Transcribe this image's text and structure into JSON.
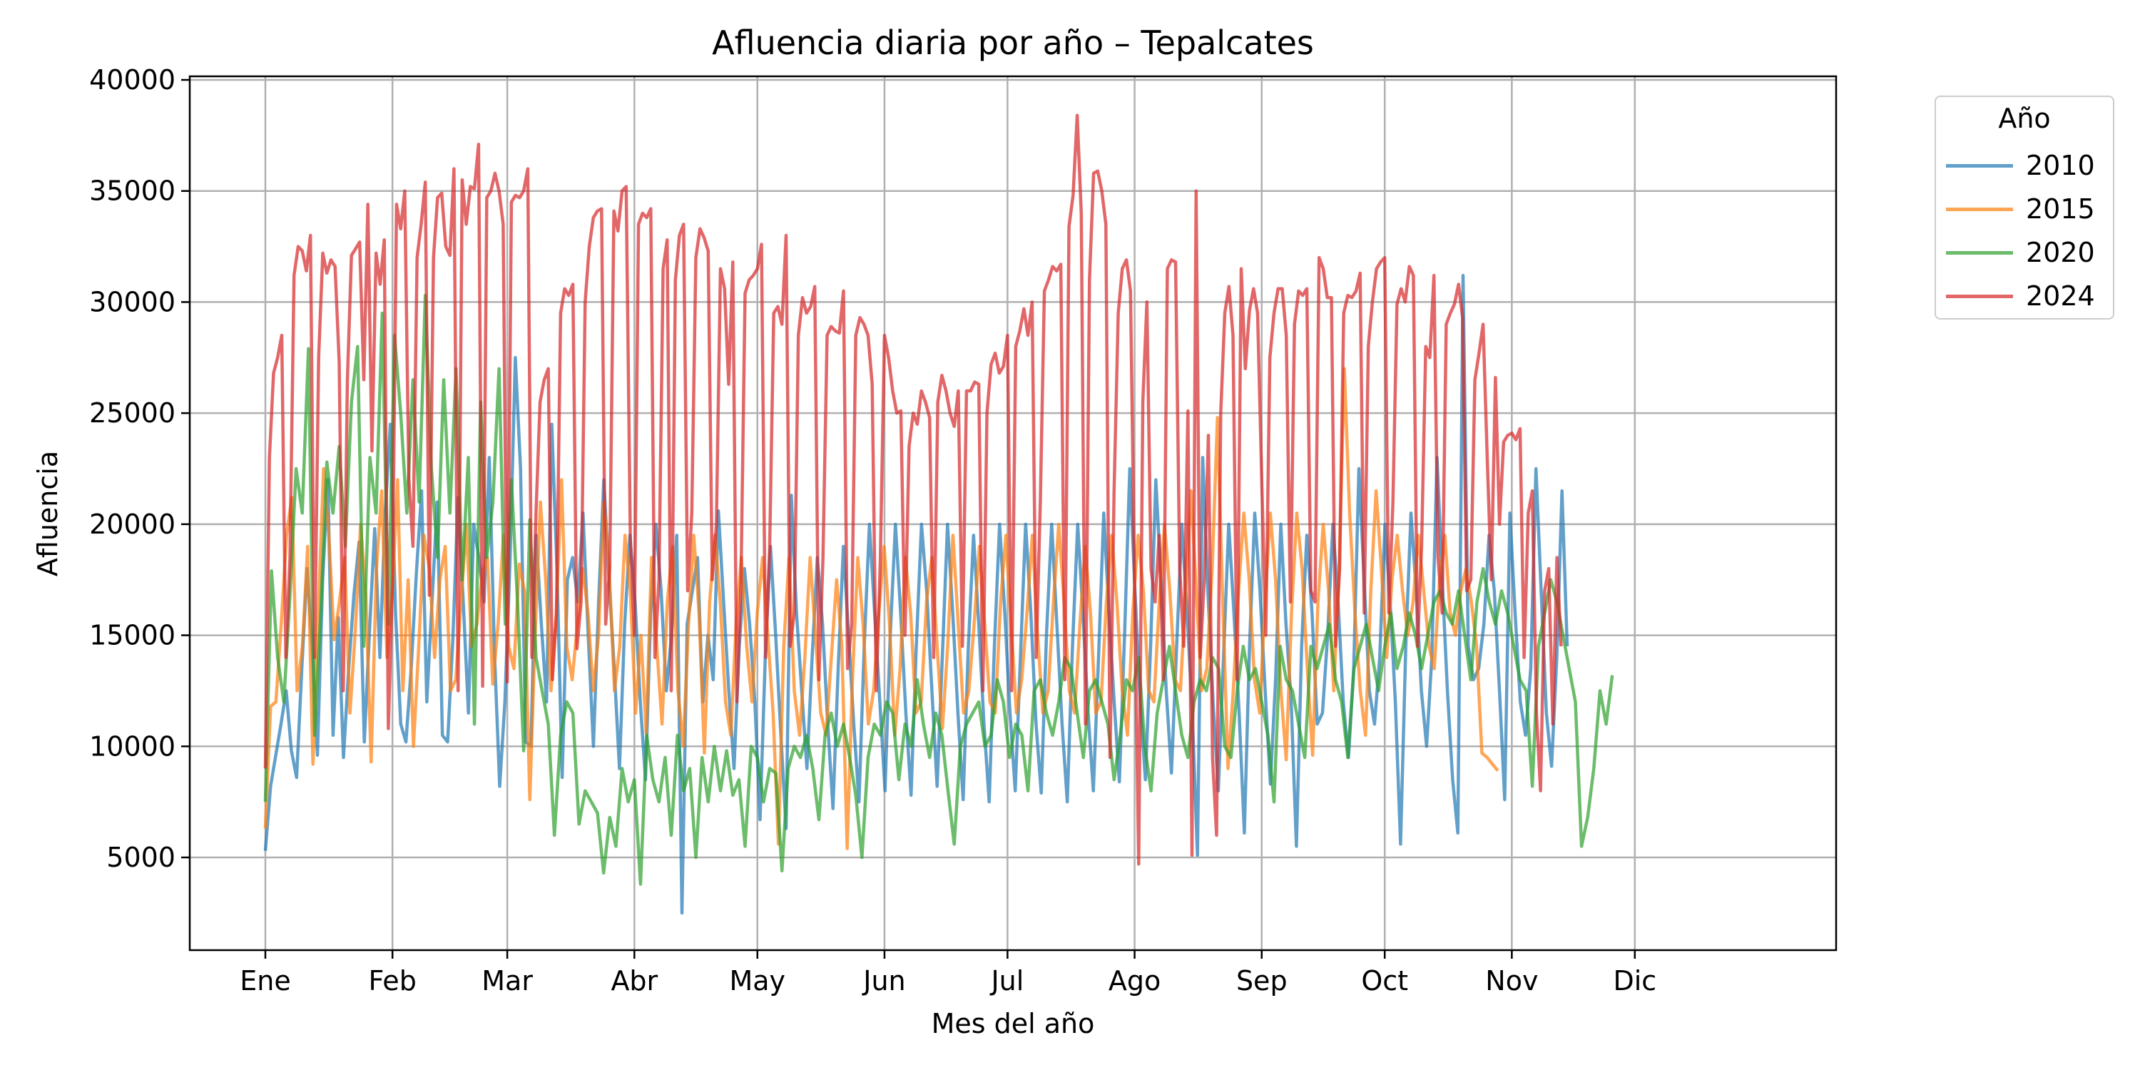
{
  "chart_data": {
    "type": "line",
    "title": "Afluencia diaria por año – Tepalcates",
    "xlabel": "Mes del año",
    "ylabel": "Afluencia",
    "x_unit": "day of year",
    "x_range": [
      1,
      366
    ],
    "ylim": [
      1000,
      40500
    ],
    "yticks": [
      5000,
      10000,
      15000,
      20000,
      25000,
      30000,
      35000,
      40000
    ],
    "xticks": [
      {
        "day": 1,
        "label": "Ene"
      },
      {
        "day": 32,
        "label": "Feb"
      },
      {
        "day": 60,
        "label": "Mar"
      },
      {
        "day": 91,
        "label": "Abr"
      },
      {
        "day": 121,
        "label": "May"
      },
      {
        "day": 152,
        "label": "Jun"
      },
      {
        "day": 182,
        "label": "Jul"
      },
      {
        "day": 213,
        "label": "Ago"
      },
      {
        "day": 244,
        "label": "Sep"
      },
      {
        "day": 274,
        "label": "Oct"
      },
      {
        "day": 305,
        "label": "Nov"
      },
      {
        "day": 335,
        "label": "Dic"
      }
    ],
    "grid": true,
    "legend": {
      "title": "Año",
      "placement": "outside-top-right"
    },
    "series": [
      {
        "name": "2010",
        "color": "#1f77b4",
        "alpha": 0.7,
        "values": [
          5300,
          8200,
          9600,
          11000,
          12500,
          9800,
          8600,
          13500,
          18000,
          14500,
          9600,
          17500,
          22000,
          10500,
          15800,
          9500,
          13500,
          16800,
          19200,
          10200,
          15200,
          19800,
          14000,
          20500,
          24500,
          16000,
          11000,
          10200,
          13500,
          17800,
          21500,
          12000,
          16500,
          21000,
          10500,
          10200,
          14800,
          21200,
          16500,
          11500,
          20000,
          18500,
          16500,
          23000,
          14200,
          8200,
          12000,
          18500,
          27500,
          22500,
          10200,
          10000,
          19500,
          15500,
          12000,
          24500,
          18000,
          8600,
          17500,
          18500,
          16500,
          20500,
          15000,
          10000,
          16500,
          22000,
          17500,
          13500,
          9000,
          15500,
          19500,
          16500,
          12000,
          8500,
          16000,
          20000,
          17000,
          12500,
          15000,
          19500,
          2500,
          15500,
          17000,
          18500,
          12000,
          15000,
          13000,
          20600,
          16500,
          12500,
          9000,
          14500,
          18000,
          15500,
          12000,
          6700,
          14000,
          19000,
          15000,
          10500,
          6300,
          21300,
          16000,
          12500,
          9000,
          14000,
          18500,
          15500,
          11000,
          7200,
          13500,
          19000,
          15000,
          11000,
          7500,
          14500,
          20000,
          16000,
          12000,
          8000,
          15000,
          20000,
          16000,
          11500,
          7800,
          14500,
          20000,
          17000,
          12500,
          8200,
          14000,
          20000,
          16000,
          11500,
          7600,
          14500,
          19500,
          15500,
          11000,
          7500,
          14500,
          20000,
          16000,
          11500,
          8000,
          14000,
          20000,
          16000,
          11000,
          7900,
          15000,
          20000,
          15500,
          11000,
          7500,
          14500,
          20000,
          16000,
          11500,
          8000,
          14000,
          20500,
          16000,
          12000,
          8400,
          15000,
          22500,
          17000,
          12000,
          8500,
          14500,
          22000,
          17500,
          12500,
          8800,
          14500,
          20000,
          16000,
          11500,
          5100,
          23000,
          17000,
          12000,
          8000,
          14000,
          20000,
          16000,
          11500,
          6100,
          14500,
          20500,
          17000,
          12500,
          8300,
          13000,
          20000,
          15500,
          12000,
          5500,
          14500,
          19500,
          16000,
          11000,
          11500,
          15000,
          20000,
          16500,
          12000,
          9500,
          13500,
          22500,
          17500,
          12500,
          11000,
          14000,
          20000,
          16500,
          12000,
          5600,
          14500,
          20500,
          17000,
          12500,
          10000,
          14000,
          23000,
          17500,
          12500,
          8500,
          6100,
          31200,
          14500,
          13000,
          13500,
          15500,
          19500,
          17000,
          12500,
          7600,
          20500,
          16000,
          12000,
          10500,
          13500,
          22500,
          17000,
          11500,
          9100,
          14000,
          21500,
          14500
        ],
        "day_step": 1.27
      },
      {
        "name": "2015",
        "color": "#ff7f0e",
        "alpha": 0.7,
        "values": [
          6300,
          11800,
          12000,
          15500,
          19500,
          21200,
          12500,
          14500,
          19000,
          9200,
          16000,
          22500,
          19500,
          14800,
          16500,
          18500,
          11500,
          15200,
          20000,
          16800,
          9300,
          18000,
          21500,
          14000,
          17000,
          22000,
          12500,
          17500,
          10000,
          14500,
          19500,
          18000,
          14000,
          17500,
          19000,
          12500,
          13000,
          16500,
          20000,
          14500,
          15500,
          17800,
          18500,
          12800,
          15500,
          19500,
          14500,
          13500,
          18200,
          17000,
          7600,
          15000,
          21000,
          17500,
          12500,
          16000,
          22000,
          14500,
          13000,
          15500,
          18000,
          16000,
          12500,
          15000,
          21000,
          18000,
          12500,
          14500,
          19500,
          17000,
          11500,
          15000,
          10600,
          18500,
          14500,
          11000,
          16500,
          19000,
          12500,
          10000,
          15500,
          19500,
          16000,
          9700,
          16500,
          19500,
          16500,
          12000,
          10500,
          15500,
          18500,
          14500,
          12000,
          16000,
          18500,
          15000,
          11500,
          5600,
          14500,
          18500,
          12500,
          10500,
          14000,
          18500,
          15000,
          11500,
          10500,
          14000,
          17500,
          14500,
          5400,
          13000,
          18500,
          15500,
          11000,
          12500,
          16000,
          19000,
          15500,
          10500,
          13500,
          18500,
          16000,
          11500,
          12000,
          16500,
          18500,
          14500,
          10800,
          14500,
          19500,
          15500,
          11500,
          12500,
          15500,
          19000,
          15500,
          12000,
          11500,
          16500,
          19500,
          15500,
          11500,
          13000,
          16000,
          19500,
          15000,
          11500,
          12500,
          16500,
          20000,
          16500,
          12500,
          11500,
          15500,
          19000,
          16000,
          11500,
          12000,
          16500,
          19500,
          16500,
          12500,
          10500,
          16000,
          19500,
          17000,
          12500,
          12000,
          16500,
          20000,
          17000,
          13000,
          12500,
          17000,
          21500,
          17000,
          12500,
          13500,
          18000,
          24800,
          16500,
          9000,
          12500,
          17000,
          20500,
          17500,
          13000,
          11500,
          16500,
          20500,
          17500,
          12500,
          9400,
          16000,
          20500,
          18000,
          13500,
          9600,
          16500,
          20000,
          17000,
          12500,
          18000,
          27000,
          20500,
          16000,
          12500,
          10500,
          17000,
          21500,
          18000,
          14000,
          17500,
          19500,
          17000,
          15000,
          16500,
          19500,
          17000,
          14500,
          13500,
          17500,
          19500,
          16000,
          15000,
          17000,
          18000,
          16500,
          14500,
          9700,
          9500,
          9200,
          8900
        ],
        "day_step": 1.29
      },
      {
        "name": "2020",
        "color": "#2ca02c",
        "alpha": 0.7,
        "values": [
          7500,
          17900,
          14000,
          12000,
          16800,
          22500,
          20500,
          27900,
          10500,
          16000,
          22800,
          20500,
          23500,
          19000,
          25500,
          28000,
          14500,
          23000,
          20500,
          29500,
          15500,
          28500,
          25000,
          20500,
          26500,
          21000,
          30300,
          22500,
          18500,
          26500,
          20500,
          27000,
          17500,
          23000,
          11000,
          25500,
          18500,
          21000,
          27000,
          15500,
          22000,
          16500,
          9800,
          20200,
          14000,
          12500,
          11000,
          6000,
          10500,
          12000,
          11500,
          6500,
          8000,
          7500,
          7000,
          4300,
          6800,
          5500,
          9000,
          7500,
          8500,
          3800,
          10500,
          8500,
          7500,
          9500,
          6000,
          10500,
          8000,
          9000,
          5000,
          9500,
          7500,
          10000,
          8000,
          9800,
          7800,
          8500,
          5500,
          10000,
          9500,
          7500,
          9000,
          8800,
          4400,
          9000,
          10000,
          9500,
          10500,
          9000,
          6700,
          10500,
          11500,
          10000,
          11000,
          9500,
          7800,
          5000,
          9500,
          11000,
          10500,
          12000,
          11500,
          8500,
          11000,
          10000,
          13000,
          11000,
          9500,
          11500,
          10500,
          8000,
          5600,
          10000,
          11000,
          11500,
          12000,
          10000,
          10500,
          13000,
          12000,
          9500,
          11000,
          10500,
          8000,
          12500,
          13000,
          11500,
          10500,
          12000,
          14000,
          13500,
          11500,
          9500,
          12500,
          13000,
          12000,
          11000,
          8500,
          10500,
          13000,
          12500,
          14000,
          10000,
          8000,
          11500,
          13000,
          14500,
          12500,
          10500,
          9500,
          12000,
          13000,
          12500,
          14000,
          13500,
          10000,
          9500,
          12500,
          14500,
          13000,
          13500,
          12000,
          10500,
          7500,
          14500,
          13000,
          12500,
          11000,
          9500,
          14500,
          13500,
          14500,
          15500,
          13000,
          12000,
          9500,
          13500,
          14500,
          15500,
          14000,
          12500,
          14500,
          16000,
          13500,
          14500,
          16000,
          15000,
          13500,
          15000,
          16500,
          17000,
          16000,
          15500,
          17000,
          15000,
          13000,
          16500,
          18000,
          16500,
          15500,
          17000,
          16000,
          14500,
          13000,
          12500,
          8200,
          14500,
          16000,
          17500,
          16500,
          15000,
          13500,
          12000,
          5500,
          6800,
          9000,
          12500,
          11000,
          13200
        ],
        "day_step": 1.5
      },
      {
        "name": "2024",
        "color": "#d62728",
        "alpha": 0.7,
        "values": [
          9000,
          23000,
          26800,
          27500,
          28500,
          14000,
          18500,
          31200,
          32500,
          32300,
          31400,
          33000,
          14000,
          27500,
          32200,
          31300,
          31900,
          31600,
          27300,
          12500,
          26500,
          32100,
          32400,
          32700,
          26500,
          34400,
          23300,
          32200,
          30800,
          32800,
          10800,
          17500,
          34400,
          33300,
          35000,
          22000,
          19000,
          32000,
          33500,
          35400,
          16800,
          32000,
          34700,
          34900,
          32500,
          32100,
          36000,
          12500,
          35500,
          33500,
          35200,
          35100,
          37100,
          12700,
          34700,
          35000,
          35800,
          35000,
          33500,
          12900,
          34500,
          34800,
          34700,
          35000,
          36000,
          14000,
          20500,
          25500,
          26500,
          27000,
          13000,
          16000,
          29500,
          30600,
          30300,
          30800,
          14400,
          16500,
          30000,
          32500,
          33800,
          34100,
          34200,
          15500,
          18000,
          34100,
          33200,
          35000,
          35200,
          19500,
          15000,
          33500,
          34000,
          33800,
          34200,
          14000,
          17500,
          31500,
          32800,
          12500,
          31000,
          33000,
          33500,
          17000,
          20500,
          32000,
          33300,
          32900,
          32300,
          17500,
          20000,
          31500,
          30600,
          26300,
          31800,
          12000,
          17500,
          30400,
          31000,
          31200,
          31500,
          32600,
          14000,
          19000,
          29500,
          29800,
          29000,
          33000,
          14500,
          16000,
          28500,
          30200,
          29500,
          29800,
          30700,
          13000,
          18500,
          28500,
          28900,
          28700,
          28600,
          30500,
          13500,
          15500,
          28500,
          29300,
          29000,
          28500,
          26300,
          12500,
          18500,
          28500,
          27500,
          26000,
          25000,
          25100,
          15000,
          23500,
          25000,
          24500,
          26000,
          25500,
          24800,
          14000,
          25500,
          26700,
          26000,
          25000,
          24400,
          26000,
          14500,
          26000,
          26000,
          26400,
          26300,
          12500,
          25000,
          27200,
          27700,
          26800,
          27100,
          28500,
          12500,
          28000,
          28700,
          29700,
          28500,
          30000,
          14000,
          21000,
          30500,
          31000,
          31600,
          31400,
          31700,
          13000,
          33400,
          34800,
          38400,
          34000,
          11000,
          31000,
          35800,
          35900,
          35000,
          33500,
          9500,
          21500,
          29500,
          31500,
          31900,
          30500,
          17000,
          4700,
          25500,
          30000,
          18000,
          16500,
          19500,
          13000,
          31500,
          31900,
          31800,
          18000,
          14500,
          25100,
          5100,
          35000,
          14000,
          17500,
          24000,
          9500,
          6000,
          25000,
          29500,
          30700,
          28500,
          13000,
          31500,
          27000,
          29600,
          30600,
          29500,
          22000,
          15000,
          27500,
          29500,
          30600,
          30600,
          28500,
          16500,
          29000,
          30500,
          30300,
          30600,
          17000,
          16500,
          32000,
          31500,
          30200,
          30200,
          14500,
          18000,
          29500,
          30300,
          30200,
          30500,
          31300,
          16000,
          28000,
          30000,
          31500,
          31800,
          32000,
          16000,
          21000,
          29900,
          30600,
          30000,
          31600,
          31200,
          14500,
          19000,
          28000,
          27500,
          31200,
          18500,
          16000,
          29000,
          29500,
          29900,
          30800,
          29300,
          17000,
          17500,
          26500,
          27700,
          29000,
          23000,
          17500,
          26600,
          20000,
          23700,
          24000,
          24100,
          23800,
          24300,
          14000,
          20500,
          21500,
          11500,
          8000,
          17000,
          18000,
          11000,
          18500,
          14500
        ],
        "day_step": 1.0
      }
    ]
  }
}
